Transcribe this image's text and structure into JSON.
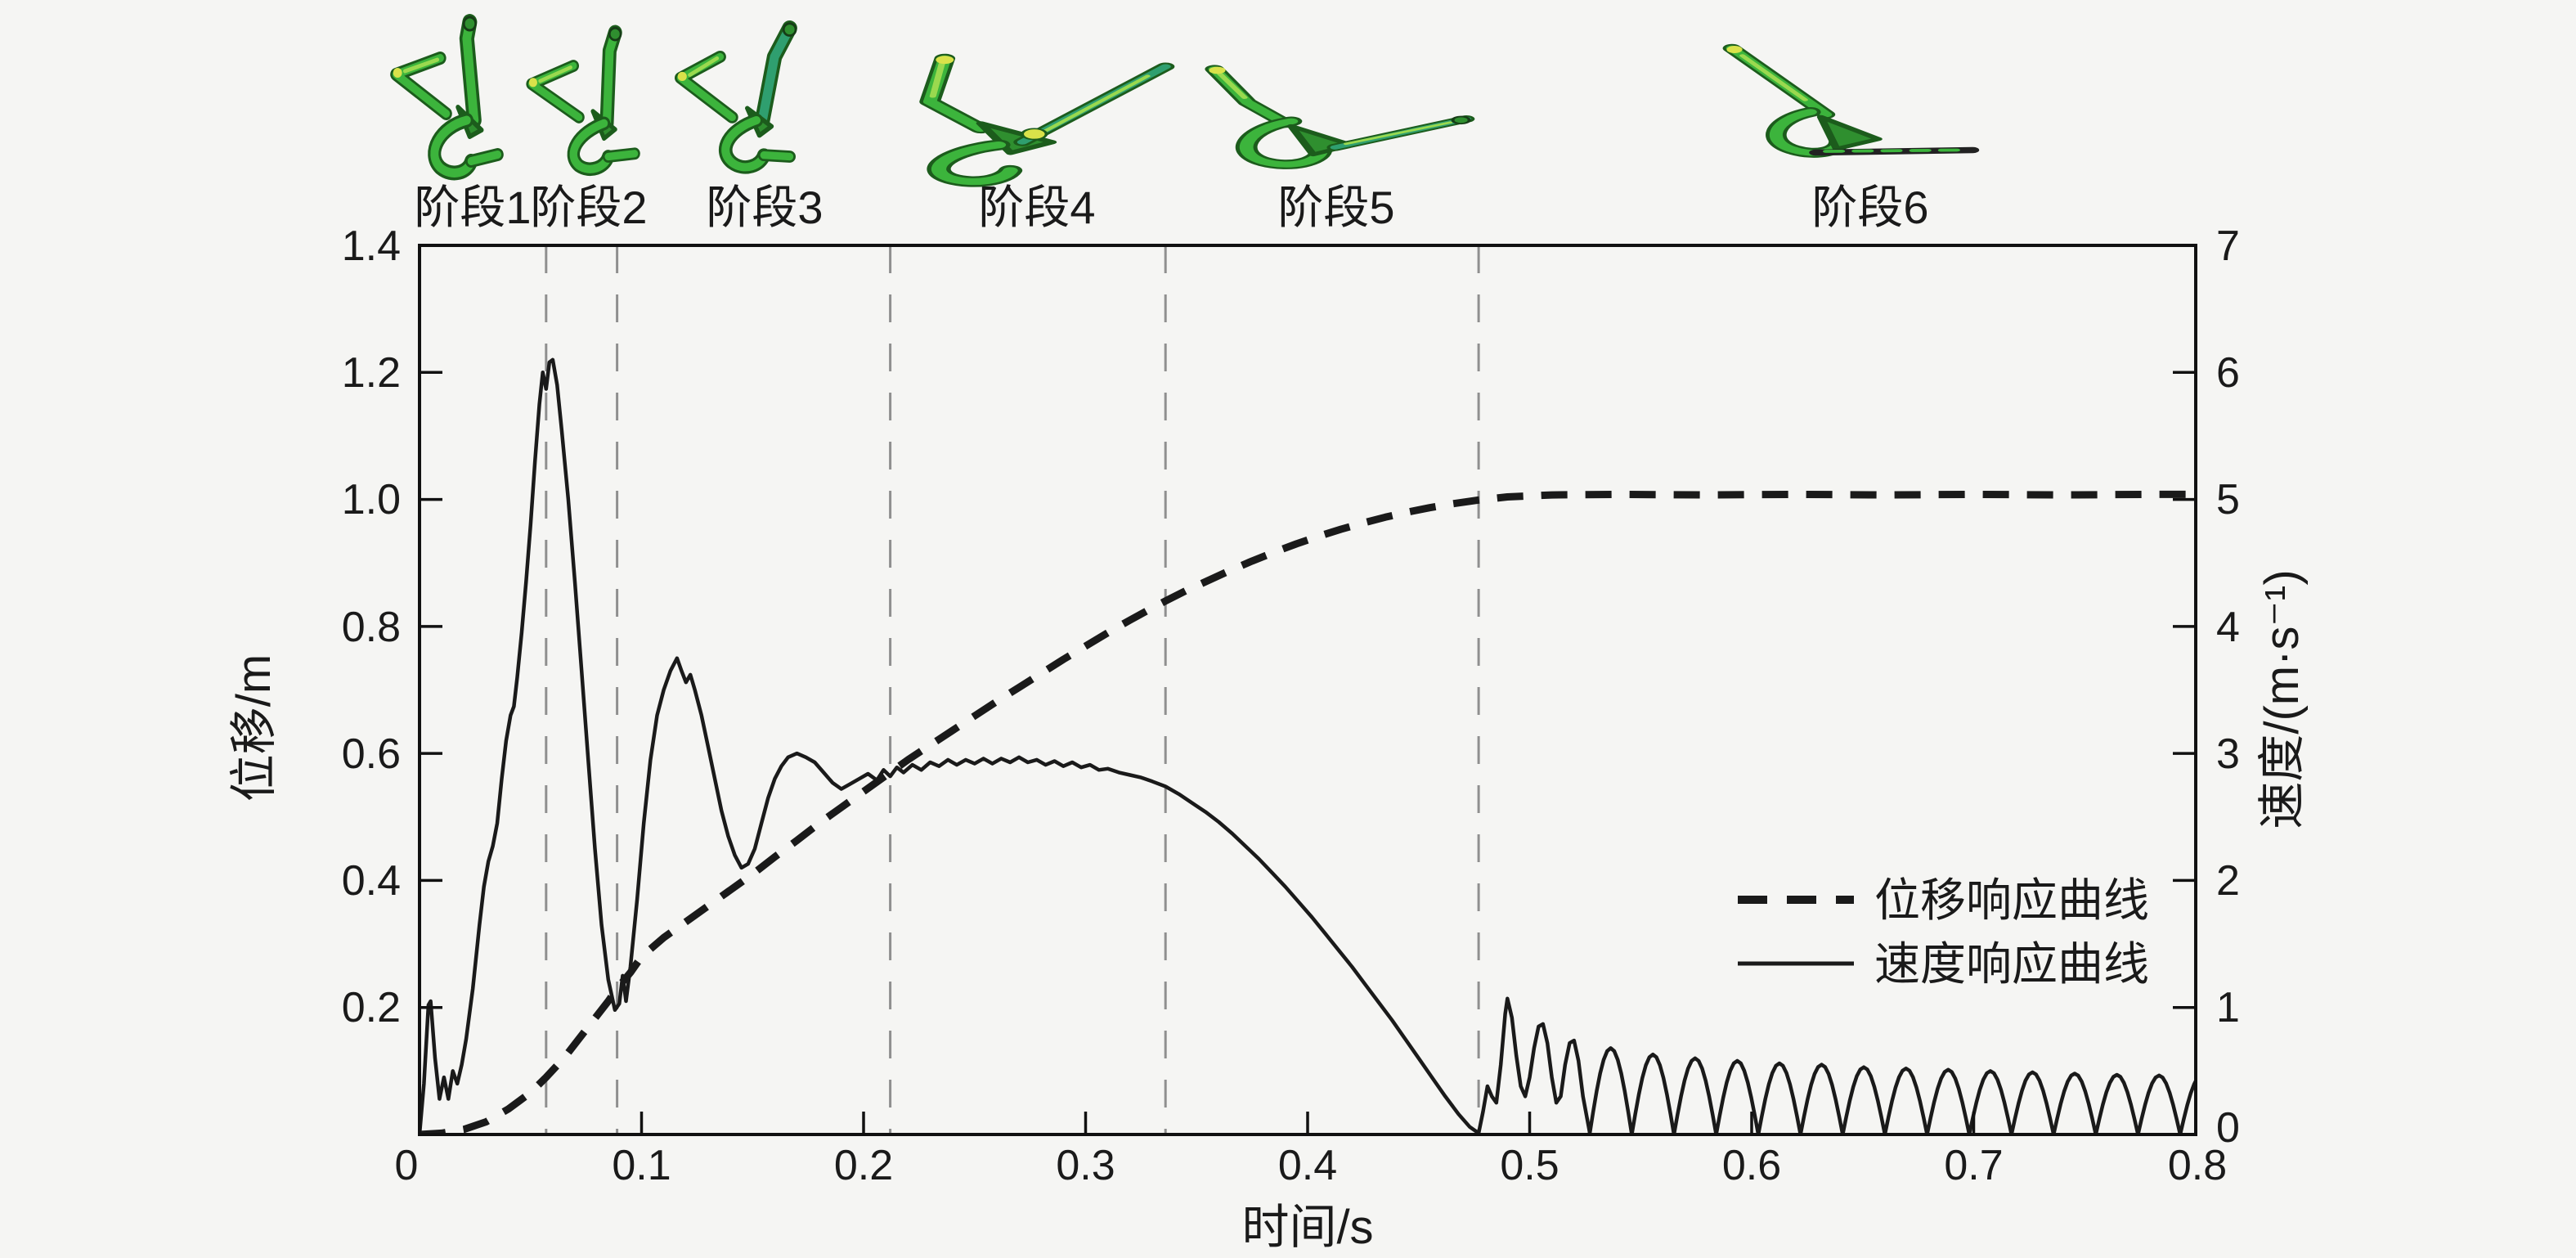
{
  "stages": {
    "labels": [
      "阶段1",
      "阶段2",
      "阶段3",
      "阶段4",
      "阶段5",
      "阶段6"
    ]
  },
  "chart": {
    "x_axis": {
      "label": "时间/s",
      "ticks": [
        "0",
        "0.1",
        "0.2",
        "0.3",
        "0.4",
        "0.5",
        "0.6",
        "0.7",
        "0.8"
      ]
    },
    "y_left": {
      "label": "位移/m",
      "ticks": [
        "0.2",
        "0.4",
        "0.6",
        "0.8",
        "1.0",
        "1.2",
        "1.4"
      ]
    },
    "y_right": {
      "label": "速度/(m·s⁻¹)",
      "ticks": [
        "0",
        "1",
        "2",
        "3",
        "4",
        "5",
        "6",
        "7"
      ]
    },
    "legend": [
      {
        "style": "dashed",
        "label": "位移响应曲线"
      },
      {
        "style": "solid",
        "label": "速度响应曲线"
      }
    ],
    "colors": {
      "curve": "#1a1a1a",
      "boundary_line": "#8f8f8f",
      "mech_green": "#3cb43c",
      "mech_dark": "#1c5c1c",
      "mech_light": "#9ad94f",
      "mech_joint": "#d9e24a",
      "background": "#f5f5f3"
    }
  },
  "chart_data": {
    "type": "line",
    "title": "",
    "xlabel": "时间/s",
    "xlim": [
      0,
      0.8
    ],
    "y_left_label": "位移/m",
    "y_left_lim": [
      0,
      1.4
    ],
    "y_right_label": "速度/(m·s⁻¹)",
    "y_right_lim": [
      0,
      7
    ],
    "grid": false,
    "legend_position": "center-right",
    "stage_boundaries_s": [
      0.057,
      0.089,
      0.212,
      0.336,
      0.477
    ],
    "series": [
      {
        "name": "位移响应曲线",
        "axis": "left",
        "style": "dashed",
        "units": "m",
        "points": [
          [
            0,
            0
          ],
          [
            0.01,
            0.002
          ],
          [
            0.02,
            0.008
          ],
          [
            0.03,
            0.02
          ],
          [
            0.04,
            0.04
          ],
          [
            0.05,
            0.066
          ],
          [
            0.057,
            0.09
          ],
          [
            0.065,
            0.12
          ],
          [
            0.075,
            0.165
          ],
          [
            0.085,
            0.21
          ],
          [
            0.089,
            0.23
          ],
          [
            0.095,
            0.255
          ],
          [
            0.1,
            0.28
          ],
          [
            0.11,
            0.31
          ],
          [
            0.12,
            0.335
          ],
          [
            0.13,
            0.36
          ],
          [
            0.14,
            0.385
          ],
          [
            0.15,
            0.41
          ],
          [
            0.16,
            0.437
          ],
          [
            0.17,
            0.463
          ],
          [
            0.18,
            0.49
          ],
          [
            0.19,
            0.515
          ],
          [
            0.2,
            0.54
          ],
          [
            0.212,
            0.57
          ],
          [
            0.22,
            0.59
          ],
          [
            0.23,
            0.613
          ],
          [
            0.24,
            0.636
          ],
          [
            0.25,
            0.659
          ],
          [
            0.26,
            0.682
          ],
          [
            0.27,
            0.704
          ],
          [
            0.28,
            0.726
          ],
          [
            0.29,
            0.748
          ],
          [
            0.3,
            0.769
          ],
          [
            0.31,
            0.79
          ],
          [
            0.32,
            0.81
          ],
          [
            0.33,
            0.829
          ],
          [
            0.336,
            0.84
          ],
          [
            0.345,
            0.856
          ],
          [
            0.355,
            0.872
          ],
          [
            0.365,
            0.888
          ],
          [
            0.375,
            0.903
          ],
          [
            0.385,
            0.917
          ],
          [
            0.395,
            0.93
          ],
          [
            0.405,
            0.942
          ],
          [
            0.415,
            0.953
          ],
          [
            0.425,
            0.963
          ],
          [
            0.435,
            0.972
          ],
          [
            0.445,
            0.98
          ],
          [
            0.455,
            0.987
          ],
          [
            0.465,
            0.993
          ],
          [
            0.477,
            0.999
          ],
          [
            0.49,
            1.004
          ],
          [
            0.51,
            1.007
          ],
          [
            0.54,
            1.008
          ],
          [
            0.58,
            1.007
          ],
          [
            0.62,
            1.008
          ],
          [
            0.66,
            1.007
          ],
          [
            0.7,
            1.008
          ],
          [
            0.74,
            1.007
          ],
          [
            0.78,
            1.008
          ],
          [
            0.8,
            1.008
          ]
        ]
      },
      {
        "name": "速度响应曲线",
        "axis": "right",
        "style": "solid",
        "units": "m/s",
        "points": [
          [
            0,
            0
          ],
          [
            0.002,
            0.4
          ],
          [
            0.004,
            1.02
          ],
          [
            0.005,
            1.05
          ],
          [
            0.007,
            0.6
          ],
          [
            0.009,
            0.28
          ],
          [
            0.011,
            0.45
          ],
          [
            0.013,
            0.28
          ],
          [
            0.015,
            0.5
          ],
          [
            0.017,
            0.4
          ],
          [
            0.019,
            0.55
          ],
          [
            0.021,
            0.75
          ],
          [
            0.024,
            1.15
          ],
          [
            0.027,
            1.65
          ],
          [
            0.029,
            1.95
          ],
          [
            0.031,
            2.15
          ],
          [
            0.033,
            2.27
          ],
          [
            0.035,
            2.45
          ],
          [
            0.037,
            2.8
          ],
          [
            0.039,
            3.1
          ],
          [
            0.041,
            3.3
          ],
          [
            0.0425,
            3.37
          ],
          [
            0.044,
            3.6
          ],
          [
            0.046,
            3.95
          ],
          [
            0.048,
            4.35
          ],
          [
            0.05,
            4.8
          ],
          [
            0.052,
            5.3
          ],
          [
            0.054,
            5.75
          ],
          [
            0.0555,
            6.0
          ],
          [
            0.057,
            5.87
          ],
          [
            0.0585,
            6.08
          ],
          [
            0.06,
            6.1
          ],
          [
            0.062,
            5.9
          ],
          [
            0.064,
            5.55
          ],
          [
            0.067,
            5.0
          ],
          [
            0.07,
            4.35
          ],
          [
            0.073,
            3.65
          ],
          [
            0.076,
            2.95
          ],
          [
            0.079,
            2.25
          ],
          [
            0.082,
            1.65
          ],
          [
            0.085,
            1.22
          ],
          [
            0.088,
            0.98
          ],
          [
            0.09,
            1.03
          ],
          [
            0.0915,
            1.25
          ],
          [
            0.093,
            1.05
          ],
          [
            0.095,
            1.32
          ],
          [
            0.098,
            1.85
          ],
          [
            0.101,
            2.45
          ],
          [
            0.104,
            2.95
          ],
          [
            0.107,
            3.3
          ],
          [
            0.11,
            3.5
          ],
          [
            0.113,
            3.65
          ],
          [
            0.116,
            3.75
          ],
          [
            0.118,
            3.65
          ],
          [
            0.12,
            3.56
          ],
          [
            0.122,
            3.62
          ],
          [
            0.124,
            3.5
          ],
          [
            0.127,
            3.3
          ],
          [
            0.13,
            3.05
          ],
          [
            0.133,
            2.8
          ],
          [
            0.136,
            2.55
          ],
          [
            0.139,
            2.35
          ],
          [
            0.142,
            2.2
          ],
          [
            0.145,
            2.1
          ],
          [
            0.148,
            2.13
          ],
          [
            0.151,
            2.25
          ],
          [
            0.154,
            2.45
          ],
          [
            0.157,
            2.65
          ],
          [
            0.16,
            2.8
          ],
          [
            0.163,
            2.9
          ],
          [
            0.166,
            2.97
          ],
          [
            0.17,
            3.0
          ],
          [
            0.174,
            2.97
          ],
          [
            0.178,
            2.93
          ],
          [
            0.182,
            2.85
          ],
          [
            0.186,
            2.77
          ],
          [
            0.19,
            2.72
          ],
          [
            0.194,
            2.76
          ],
          [
            0.198,
            2.8
          ],
          [
            0.202,
            2.84
          ],
          [
            0.206,
            2.79
          ],
          [
            0.209,
            2.87
          ],
          [
            0.212,
            2.82
          ],
          [
            0.215,
            2.89
          ],
          [
            0.218,
            2.85
          ],
          [
            0.222,
            2.91
          ],
          [
            0.226,
            2.87
          ],
          [
            0.23,
            2.93
          ],
          [
            0.234,
            2.9
          ],
          [
            0.238,
            2.95
          ],
          [
            0.242,
            2.91
          ],
          [
            0.246,
            2.95
          ],
          [
            0.25,
            2.92
          ],
          [
            0.254,
            2.96
          ],
          [
            0.258,
            2.92
          ],
          [
            0.262,
            2.96
          ],
          [
            0.266,
            2.93
          ],
          [
            0.27,
            2.97
          ],
          [
            0.274,
            2.93
          ],
          [
            0.278,
            2.95
          ],
          [
            0.282,
            2.91
          ],
          [
            0.286,
            2.94
          ],
          [
            0.29,
            2.9
          ],
          [
            0.294,
            2.93
          ],
          [
            0.298,
            2.89
          ],
          [
            0.302,
            2.91
          ],
          [
            0.306,
            2.87
          ],
          [
            0.31,
            2.88
          ],
          [
            0.315,
            2.85
          ],
          [
            0.32,
            2.83
          ],
          [
            0.325,
            2.81
          ],
          [
            0.33,
            2.78
          ],
          [
            0.336,
            2.74
          ],
          [
            0.342,
            2.68
          ],
          [
            0.348,
            2.61
          ],
          [
            0.354,
            2.54
          ],
          [
            0.36,
            2.46
          ],
          [
            0.366,
            2.37
          ],
          [
            0.372,
            2.27
          ],
          [
            0.378,
            2.17
          ],
          [
            0.384,
            2.06
          ],
          [
            0.39,
            1.95
          ],
          [
            0.396,
            1.83
          ],
          [
            0.402,
            1.71
          ],
          [
            0.408,
            1.58
          ],
          [
            0.414,
            1.45
          ],
          [
            0.42,
            1.32
          ],
          [
            0.426,
            1.18
          ],
          [
            0.432,
            1.04
          ],
          [
            0.438,
            0.9
          ],
          [
            0.444,
            0.75
          ],
          [
            0.45,
            0.6
          ],
          [
            0.456,
            0.45
          ],
          [
            0.462,
            0.3
          ],
          [
            0.468,
            0.16
          ],
          [
            0.473,
            0.06
          ],
          [
            0.477,
            0.01
          ],
          [
            0.479,
            0.18
          ],
          [
            0.481,
            0.38
          ],
          [
            0.483,
            0.3
          ],
          [
            0.485,
            0.25
          ],
          [
            0.487,
            0.55
          ],
          [
            0.489,
            0.95
          ],
          [
            0.49,
            1.07
          ],
          [
            0.492,
            0.92
          ],
          [
            0.494,
            0.62
          ],
          [
            0.496,
            0.38
          ],
          [
            0.498,
            0.3
          ],
          [
            0.5,
            0.45
          ],
          [
            0.502,
            0.68
          ],
          [
            0.504,
            0.85
          ],
          [
            0.506,
            0.87
          ],
          [
            0.508,
            0.72
          ],
          [
            0.51,
            0.45
          ],
          [
            0.512,
            0.25
          ],
          [
            0.514,
            0.3
          ],
          [
            0.516,
            0.55
          ],
          [
            0.518,
            0.72
          ],
          [
            0.52,
            0.74
          ],
          [
            0.522,
            0.58
          ],
          [
            0.524,
            0.3
          ],
          [
            0.527,
            0.02
          ]
        ],
        "bounce_humps": [
          [
            0.527,
            0.019,
            0.68
          ],
          [
            0.546,
            0.019,
            0.63
          ],
          [
            0.565,
            0.019,
            0.6
          ],
          [
            0.584,
            0.019,
            0.58
          ],
          [
            0.603,
            0.019,
            0.56
          ],
          [
            0.622,
            0.019,
            0.55
          ],
          [
            0.641,
            0.019,
            0.53
          ],
          [
            0.66,
            0.019,
            0.52
          ],
          [
            0.679,
            0.019,
            0.51
          ],
          [
            0.698,
            0.019,
            0.5
          ],
          [
            0.717,
            0.019,
            0.49
          ],
          [
            0.736,
            0.019,
            0.48
          ],
          [
            0.755,
            0.019,
            0.47
          ],
          [
            0.774,
            0.019,
            0.465
          ],
          [
            0.793,
            0.019,
            0.46
          ]
        ]
      }
    ]
  }
}
